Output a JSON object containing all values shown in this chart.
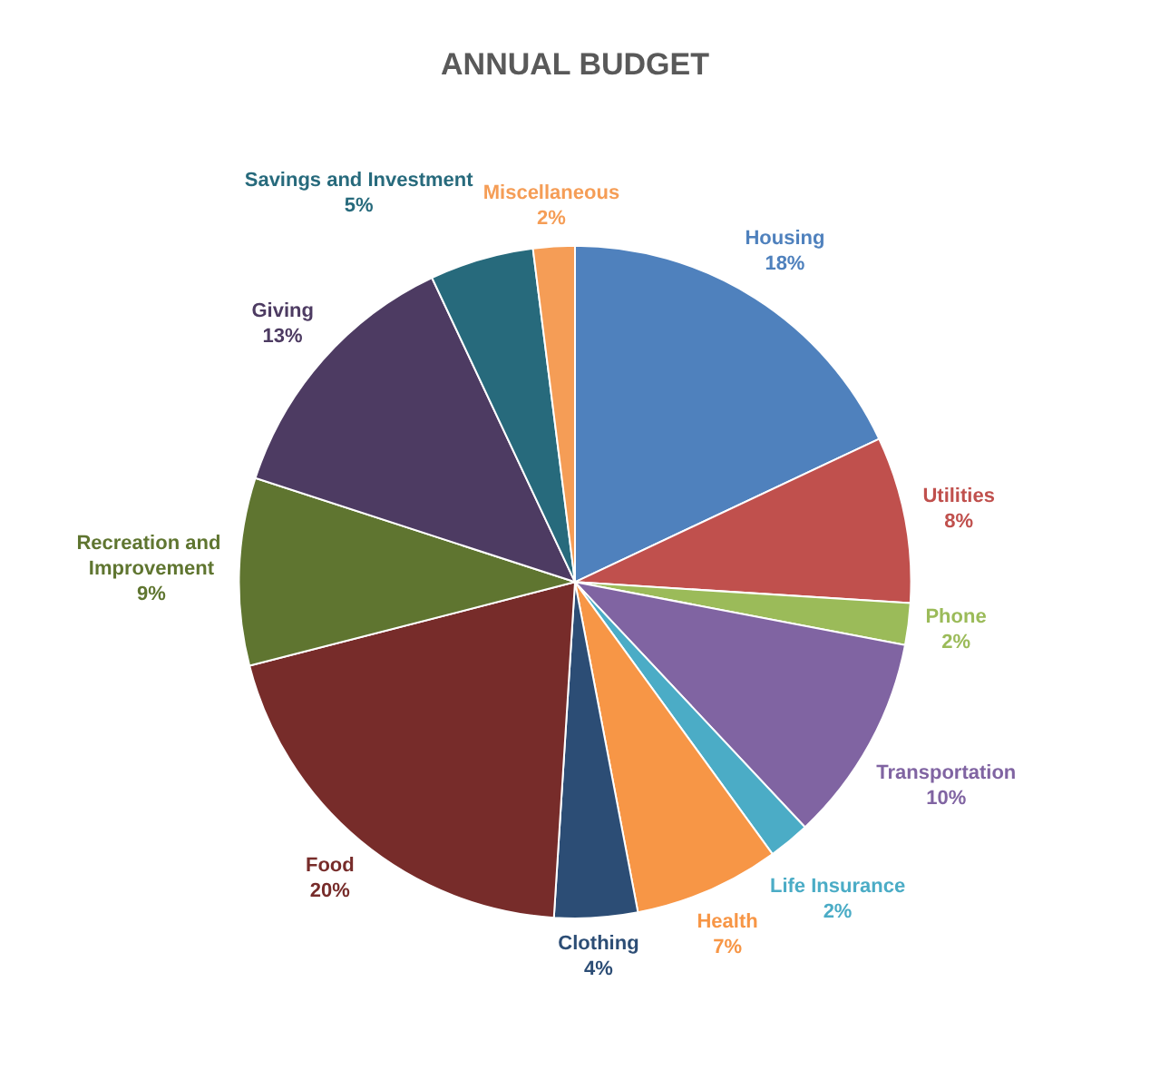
{
  "chart_data": {
    "type": "pie",
    "title": "ANNUAL BUDGET",
    "categories": [
      "Housing",
      "Utilities",
      "Phone",
      "Transportation",
      "Life Insurance",
      "Health",
      "Clothing",
      "Food",
      "Recreation and Improvement",
      "Giving",
      "Savings and Investment",
      "Miscellaneous"
    ],
    "values": [
      18,
      8,
      2,
      10,
      2,
      7,
      4,
      20,
      9,
      13,
      5,
      2
    ],
    "value_labels": [
      "18%",
      "8%",
      "2%",
      "10%",
      "2%",
      "7%",
      "4%",
      "20%",
      "9%",
      "13%",
      "5%",
      "2%"
    ],
    "colors": [
      "#4f81bd",
      "#c0504d",
      "#9bbb59",
      "#8064a2",
      "#4bacc6",
      "#f79646",
      "#2c4d75",
      "#772c2a",
      "#5f7530",
      "#4d3b62",
      "#276a7c",
      "#f59d56"
    ],
    "legend": false
  }
}
